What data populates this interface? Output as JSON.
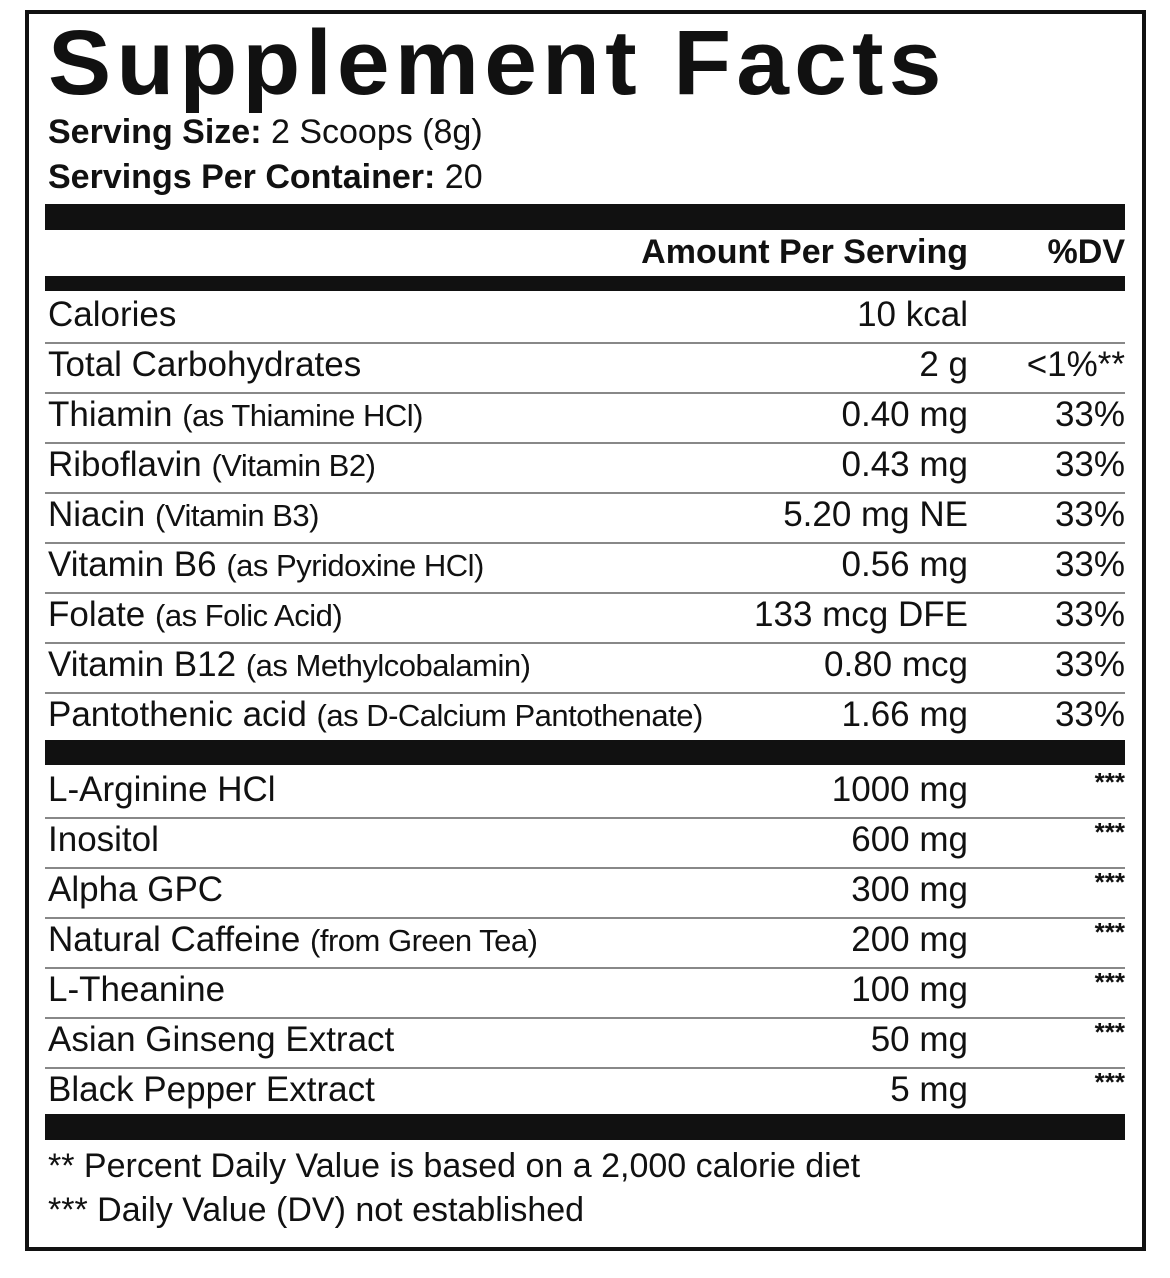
{
  "title": "Supplement Facts",
  "serving_size": {
    "label": "Serving Size:",
    "value": "2 Scoops (8g)"
  },
  "servings_per_container": {
    "label": "Servings Per Container:",
    "value": "20"
  },
  "header": {
    "amount": "Amount Per Serving",
    "dv": "%DV"
  },
  "section1": [
    {
      "name": "Calories",
      "sub": "",
      "amount": "10 kcal",
      "dv": ""
    },
    {
      "name": "Total Carbohydrates",
      "sub": "",
      "amount": "2 g",
      "dv": "<1%**"
    },
    {
      "name": "Thiamin",
      "sub": "(as Thiamine HCl)",
      "amount": "0.40 mg",
      "dv": "33%"
    },
    {
      "name": "Riboflavin",
      "sub": "(Vitamin B2)",
      "amount": "0.43 mg",
      "dv": "33%"
    },
    {
      "name": "Niacin",
      "sub": "(Vitamin B3)",
      "amount": "5.20 mg NE",
      "dv": "33%"
    },
    {
      "name": "Vitamin B6",
      "sub": "(as Pyridoxine HCl)",
      "amount": "0.56 mg",
      "dv": "33%"
    },
    {
      "name": "Folate",
      "sub": "(as Folic Acid)",
      "amount": "133 mcg DFE",
      "dv": "33%"
    },
    {
      "name": "Vitamin B12",
      "sub": "(as Methylcobalamin)",
      "amount": "0.80 mcg",
      "dv": "33%"
    },
    {
      "name": "Pantothenic acid",
      "sub": "(as D-Calcium Pantothenate)",
      "amount": "1.66 mg",
      "dv": "33%"
    }
  ],
  "section2": [
    {
      "name": "L-Arginine HCl",
      "sub": "",
      "amount": "1000 mg",
      "dv": "***"
    },
    {
      "name": "Inositol",
      "sub": "",
      "amount": "600 mg",
      "dv": "***"
    },
    {
      "name": "Alpha GPC",
      "sub": "",
      "amount": "300 mg",
      "dv": "***"
    },
    {
      "name": "Natural Caffeine",
      "sub": "(from Green Tea)",
      "amount": "200 mg",
      "dv": "***"
    },
    {
      "name": "L-Theanine",
      "sub": "",
      "amount": "100 mg",
      "dv": "***"
    },
    {
      "name": "Asian Ginseng Extract",
      "sub": "",
      "amount": "50 mg",
      "dv": "***"
    },
    {
      "name": "Black Pepper Extract",
      "sub": "",
      "amount": "5 mg",
      "dv": "***"
    }
  ],
  "footnotes": [
    "** Percent Daily Value is based on a 2,000 calorie diet",
    "*** Daily Value (DV) not established"
  ]
}
